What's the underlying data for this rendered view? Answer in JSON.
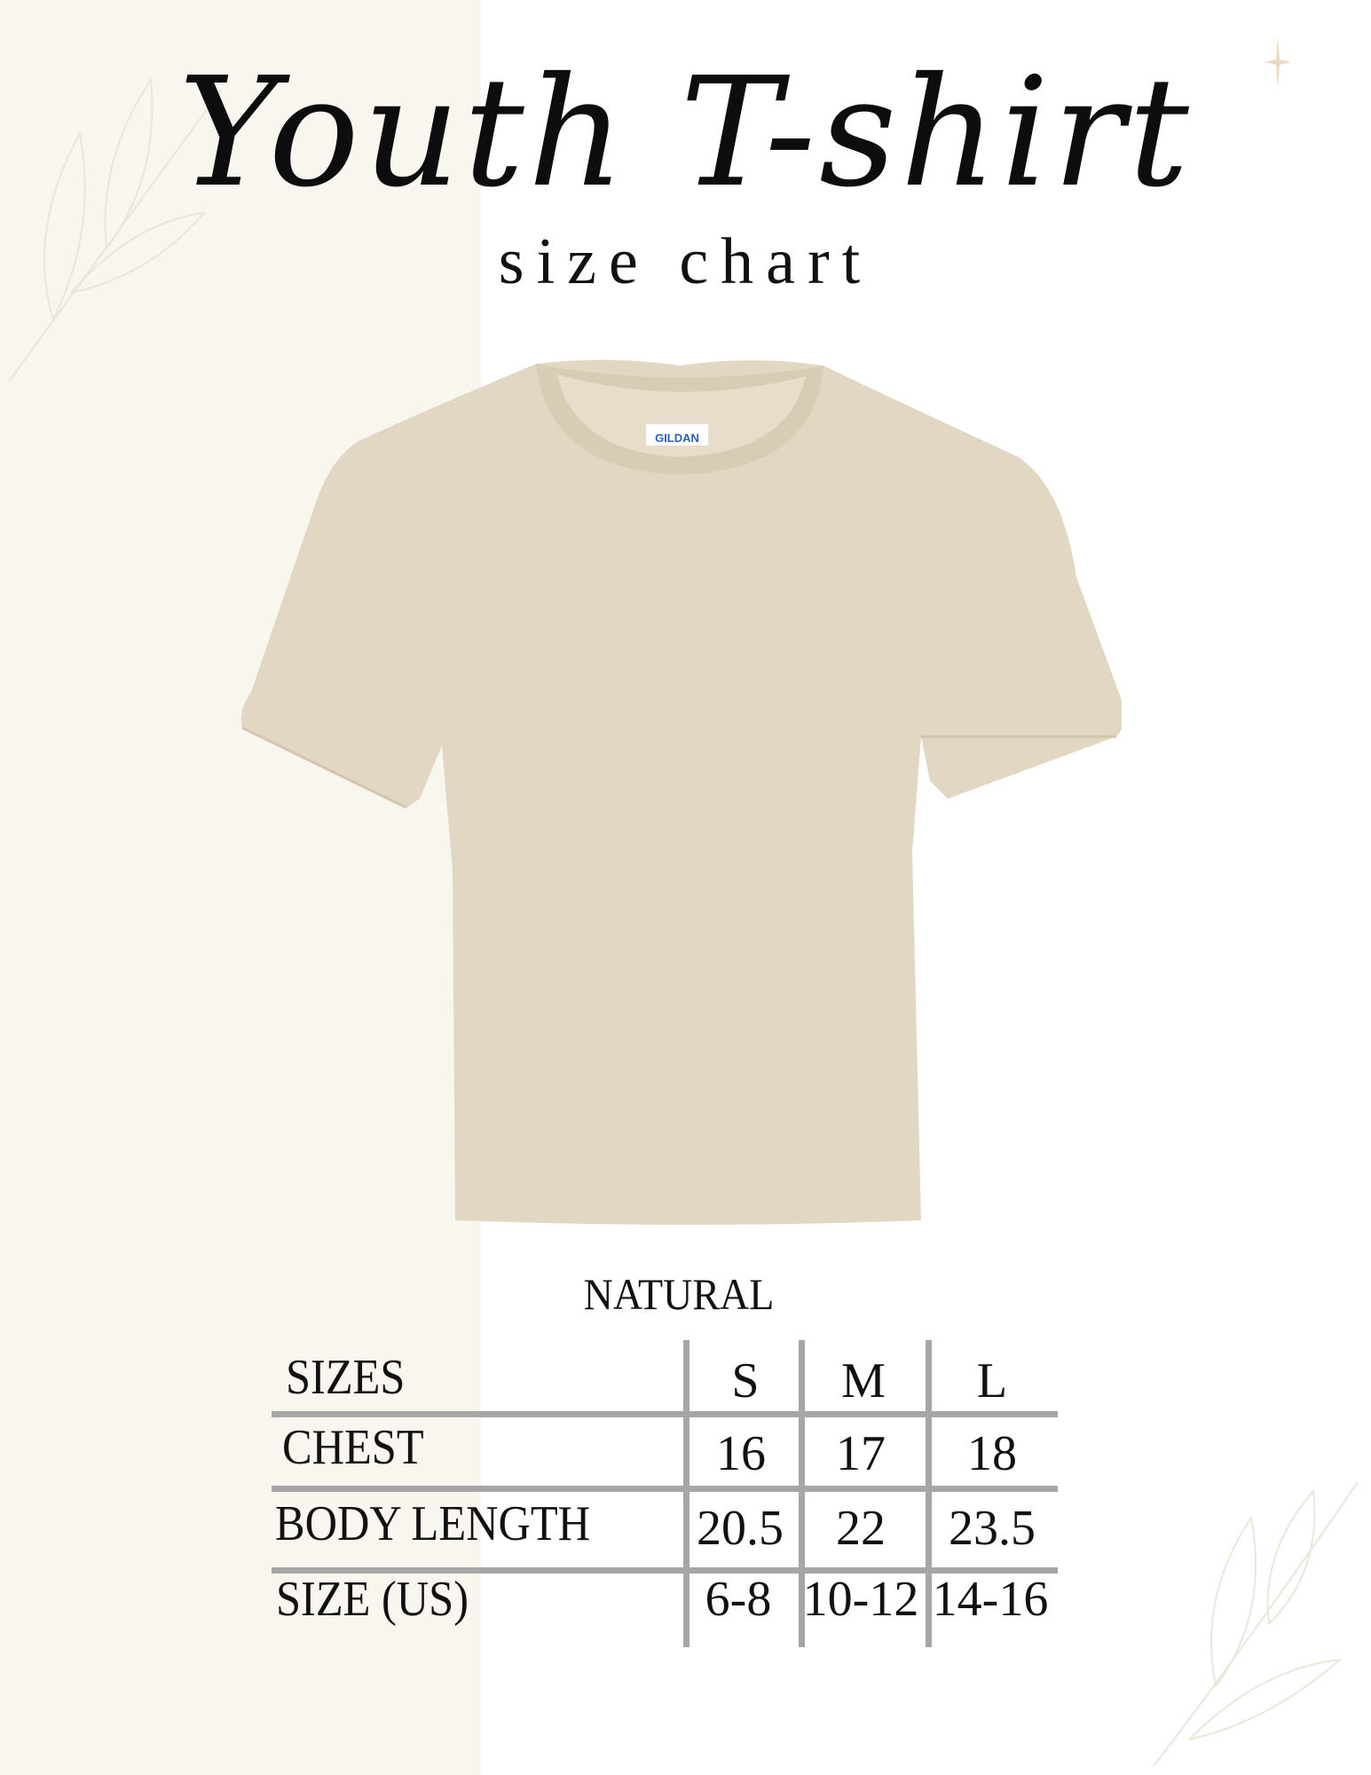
{
  "header": {
    "title": "Youth T-shirt",
    "subtitle": "size chart"
  },
  "product": {
    "color_name": "NATURAL",
    "shirt_color": "#e2d7c2",
    "label_brand": "GILDAN"
  },
  "size_table": {
    "columns": [
      "SIZES",
      "S",
      "M",
      "L"
    ],
    "rows": [
      {
        "label": "CHEST",
        "values": [
          "16",
          "17",
          "18"
        ]
      },
      {
        "label": "BODY LENGTH",
        "values": [
          "20.5",
          "22",
          "23.5"
        ]
      },
      {
        "label": "SIZE (US)",
        "values": [
          "6-8",
          "10-12",
          "14-16"
        ]
      }
    ]
  },
  "colors": {
    "panel": "#f9f6ef",
    "grid": "#a6a6a6",
    "text": "#111111"
  }
}
